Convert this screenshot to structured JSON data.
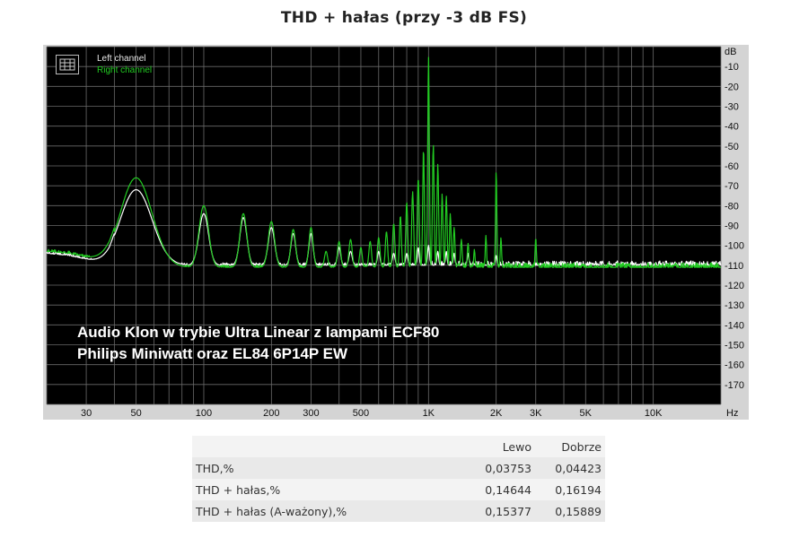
{
  "title": "THD + hałas (przy -3 dB FS)",
  "legend": [
    {
      "name": "Left channel",
      "color": "#ffffff"
    },
    {
      "name": "Right channel",
      "color": "#22cc22"
    }
  ],
  "annotation": [
    "Audio Klon w trybie Ultra Linear z lampami ECF80",
    "Philips Miniwatt oraz EL84 6P14P EW"
  ],
  "results_table": {
    "headers": [
      "",
      "Lewo",
      "Dobrze"
    ],
    "rows": [
      {
        "label": "THD,%",
        "left": "0,03753",
        "right": "0,04423"
      },
      {
        "label": "THD + hałas,%",
        "left": "0,14644",
        "right": "0,16194"
      },
      {
        "label": "THD + hałas (A-ważony),%",
        "left": "0,15377",
        "right": "0,15889"
      }
    ]
  },
  "chart_data": {
    "type": "line",
    "title": "THD + hałas (przy -3 dB FS)",
    "x_scale": "log",
    "xlim": [
      20,
      20000
    ],
    "ylim": [
      -180,
      0
    ],
    "y_unit_label": "dB",
    "x_unit_label": "Hz",
    "x_ticks": [
      {
        "value": 30,
        "label": "30"
      },
      {
        "value": 50,
        "label": "50"
      },
      {
        "value": 100,
        "label": "100"
      },
      {
        "value": 200,
        "label": "200"
      },
      {
        "value": 300,
        "label": "300"
      },
      {
        "value": 500,
        "label": "500"
      },
      {
        "value": 1000,
        "label": "1K"
      },
      {
        "value": 2000,
        "label": "2K"
      },
      {
        "value": 3000,
        "label": "3K"
      },
      {
        "value": 5000,
        "label": "5K"
      },
      {
        "value": 10000,
        "label": "10K"
      }
    ],
    "y_ticks": [
      -10,
      -20,
      -30,
      -40,
      -50,
      -60,
      -70,
      -80,
      -90,
      -100,
      -110,
      -120,
      -130,
      -140,
      -150,
      -160,
      -170
    ],
    "grid": true,
    "background": "#000000",
    "legend_position": "top-left",
    "series": [
      {
        "name": "Left channel",
        "color": "#ffffff",
        "baseline": -110,
        "floor_points": [
          [
            20,
            -104
          ],
          [
            25,
            -105
          ],
          [
            30,
            -107
          ],
          [
            38,
            -110
          ],
          [
            40,
            -108
          ]
        ],
        "peaks": [
          {
            "f": 50,
            "db": -72,
            "w": 0.1
          },
          {
            "f": 100,
            "db": -84,
            "w": 0.03
          },
          {
            "f": 150,
            "db": -86,
            "w": 0.022
          },
          {
            "f": 200,
            "db": -91,
            "w": 0.02
          },
          {
            "f": 250,
            "db": -94,
            "w": 0.015
          },
          {
            "f": 300,
            "db": -94,
            "w": 0.013
          },
          {
            "f": 400,
            "db": -101,
            "w": 0.01
          },
          {
            "f": 450,
            "db": -103,
            "w": 0.01
          },
          {
            "f": 600,
            "db": -103,
            "w": 0.008
          },
          {
            "f": 700,
            "db": -104,
            "w": 0.008
          },
          {
            "f": 800,
            "db": -104,
            "w": 0.007
          },
          {
            "f": 900,
            "db": -101,
            "w": 0.006
          },
          {
            "f": 1000,
            "db": -100,
            "w": 0.006
          },
          {
            "f": 1100,
            "db": -103,
            "w": 0.005
          },
          {
            "f": 1200,
            "db": -103,
            "w": 0.005
          },
          {
            "f": 1300,
            "db": -104,
            "w": 0.005
          },
          {
            "f": 1500,
            "db": -104,
            "w": 0.005
          },
          {
            "f": 2000,
            "db": -105,
            "w": 0.005
          }
        ]
      },
      {
        "name": "Right channel",
        "color": "#22cc22",
        "baseline": -111,
        "floor_points": [
          [
            20,
            -103
          ],
          [
            25,
            -104
          ],
          [
            30,
            -106
          ],
          [
            38,
            -108
          ],
          [
            40,
            -107
          ]
        ],
        "peaks": [
          {
            "f": 50,
            "db": -66,
            "w": 0.1
          },
          {
            "f": 100,
            "db": -80,
            "w": 0.03
          },
          {
            "f": 150,
            "db": -84,
            "w": 0.022
          },
          {
            "f": 200,
            "db": -88,
            "w": 0.02
          },
          {
            "f": 250,
            "db": -92,
            "w": 0.015
          },
          {
            "f": 300,
            "db": -91,
            "w": 0.013
          },
          {
            "f": 350,
            "db": -103,
            "w": 0.01
          },
          {
            "f": 400,
            "db": -98,
            "w": 0.01
          },
          {
            "f": 450,
            "db": -97,
            "w": 0.01
          },
          {
            "f": 500,
            "db": -101,
            "w": 0.008
          },
          {
            "f": 550,
            "db": -98,
            "w": 0.008
          },
          {
            "f": 600,
            "db": -96,
            "w": 0.008
          },
          {
            "f": 650,
            "db": -93,
            "w": 0.007
          },
          {
            "f": 700,
            "db": -89,
            "w": 0.007
          },
          {
            "f": 750,
            "db": -85,
            "w": 0.006
          },
          {
            "f": 800,
            "db": -78,
            "w": 0.006
          },
          {
            "f": 850,
            "db": -73,
            "w": 0.006
          },
          {
            "f": 900,
            "db": -66,
            "w": 0.006
          },
          {
            "f": 950,
            "db": -51,
            "w": 0.005
          },
          {
            "f": 1000,
            "db": -5,
            "w": 0.005
          },
          {
            "f": 1050,
            "db": -49,
            "w": 0.005
          },
          {
            "f": 1100,
            "db": -59,
            "w": 0.005
          },
          {
            "f": 1150,
            "db": -74,
            "w": 0.005
          },
          {
            "f": 1200,
            "db": -75,
            "w": 0.005
          },
          {
            "f": 1250,
            "db": -84,
            "w": 0.005
          },
          {
            "f": 1300,
            "db": -91,
            "w": 0.005
          },
          {
            "f": 1400,
            "db": -97,
            "w": 0.005
          },
          {
            "f": 1500,
            "db": -99,
            "w": 0.005
          },
          {
            "f": 1600,
            "db": -102,
            "w": 0.004
          },
          {
            "f": 1800,
            "db": -95,
            "w": 0.004
          },
          {
            "f": 2000,
            "db": -62,
            "w": 0.004
          },
          {
            "f": 2100,
            "db": -96,
            "w": 0.004
          },
          {
            "f": 3000,
            "db": -96,
            "w": 0.004
          }
        ]
      }
    ]
  }
}
